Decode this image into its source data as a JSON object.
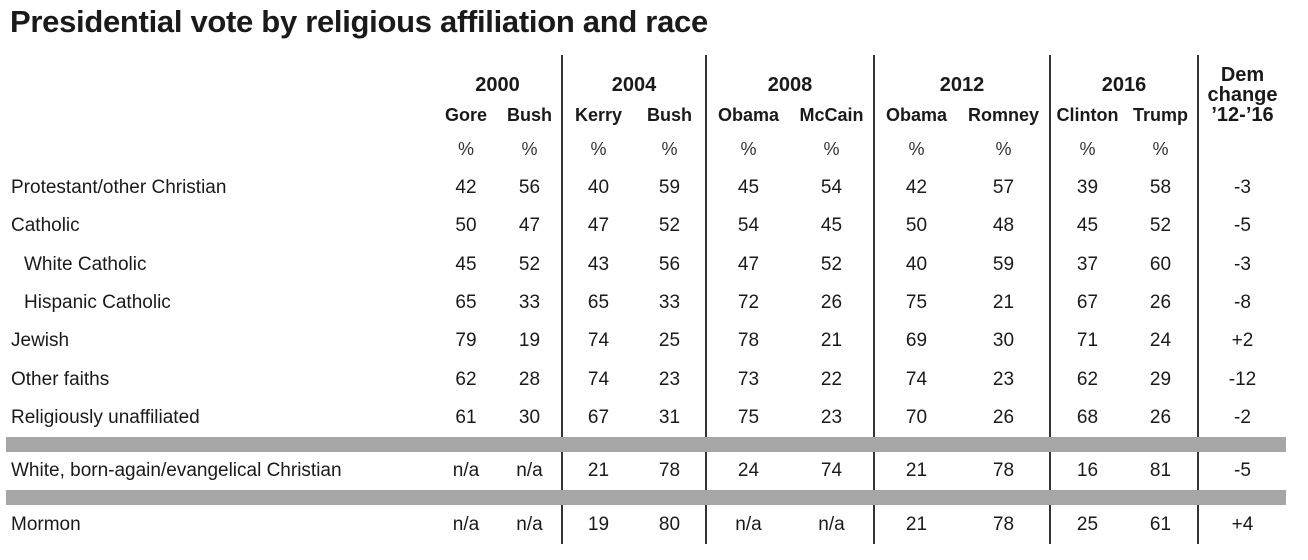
{
  "title": "Presidential vote by religious affiliation and race",
  "chart_data": {
    "type": "table",
    "title": "Presidential vote by religious affiliation and race",
    "years": [
      {
        "year": "2000",
        "candidates": [
          "Gore",
          "Bush"
        ]
      },
      {
        "year": "2004",
        "candidates": [
          "Kerry",
          "Bush"
        ]
      },
      {
        "year": "2008",
        "candidates": [
          "Obama",
          "McCain"
        ]
      },
      {
        "year": "2012",
        "candidates": [
          "Obama",
          "Romney"
        ]
      },
      {
        "year": "2016",
        "candidates": [
          "Clinton",
          "Trump"
        ]
      }
    ],
    "change_header": [
      "Dem",
      "change",
      "’12-’16"
    ],
    "unit": "%",
    "rows": [
      {
        "label": "Protestant/other Christian",
        "indent": false,
        "values": [
          "42",
          "56",
          "40",
          "59",
          "45",
          "54",
          "42",
          "57",
          "39",
          "58"
        ],
        "change": "-3"
      },
      {
        "label": "Catholic",
        "indent": false,
        "values": [
          "50",
          "47",
          "47",
          "52",
          "54",
          "45",
          "50",
          "48",
          "45",
          "52"
        ],
        "change": "-5"
      },
      {
        "label": "White Catholic",
        "indent": true,
        "values": [
          "45",
          "52",
          "43",
          "56",
          "47",
          "52",
          "40",
          "59",
          "37",
          "60"
        ],
        "change": "-3"
      },
      {
        "label": "Hispanic Catholic",
        "indent": true,
        "values": [
          "65",
          "33",
          "65",
          "33",
          "72",
          "26",
          "75",
          "21",
          "67",
          "26"
        ],
        "change": "-8"
      },
      {
        "label": "Jewish",
        "indent": false,
        "values": [
          "79",
          "19",
          "74",
          "25",
          "78",
          "21",
          "69",
          "30",
          "71",
          "24"
        ],
        "change": "+2"
      },
      {
        "label": "Other faiths",
        "indent": false,
        "values": [
          "62",
          "28",
          "74",
          "23",
          "73",
          "22",
          "74",
          "23",
          "62",
          "29"
        ],
        "change": "-12"
      },
      {
        "label": "Religiously unaffiliated",
        "indent": false,
        "values": [
          "61",
          "30",
          "67",
          "31",
          "75",
          "23",
          "70",
          "26",
          "68",
          "26"
        ],
        "change": "-2"
      },
      {
        "separator": true
      },
      {
        "label": "White, born-again/evangelical Christian",
        "indent": false,
        "values": [
          "n/a",
          "n/a",
          "21",
          "78",
          "24",
          "74",
          "21",
          "78",
          "16",
          "81"
        ],
        "change": "-5"
      },
      {
        "separator": true
      },
      {
        "label": "Mormon",
        "indent": false,
        "values": [
          "n/a",
          "n/a",
          "19",
          "80",
          "n/a",
          "n/a",
          "21",
          "78",
          "25",
          "61"
        ],
        "change": "+4"
      }
    ]
  }
}
